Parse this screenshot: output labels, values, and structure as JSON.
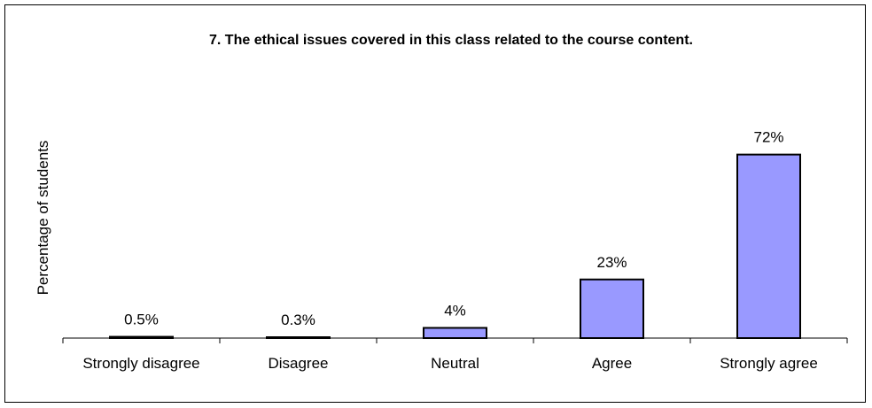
{
  "chart_data": {
    "type": "bar",
    "title": "7. The ethical issues covered in this class related to the course content.",
    "xlabel": "",
    "ylabel": "Percentage of students",
    "categories": [
      "Strongly disagree",
      "Disagree",
      "Neutral",
      "Agree",
      "Strongly agree"
    ],
    "values": [
      0.5,
      0.3,
      4,
      23,
      72
    ],
    "data_labels": [
      "0.5%",
      "0.3%",
      "4%",
      "23%",
      "72%"
    ],
    "ylim": [
      0,
      100
    ],
    "grid": false,
    "legend": "none",
    "colors": {
      "bar_fill": "#9999ff",
      "bar_stroke": "#000000",
      "axis": "#000000",
      "frame": "#000000"
    }
  }
}
